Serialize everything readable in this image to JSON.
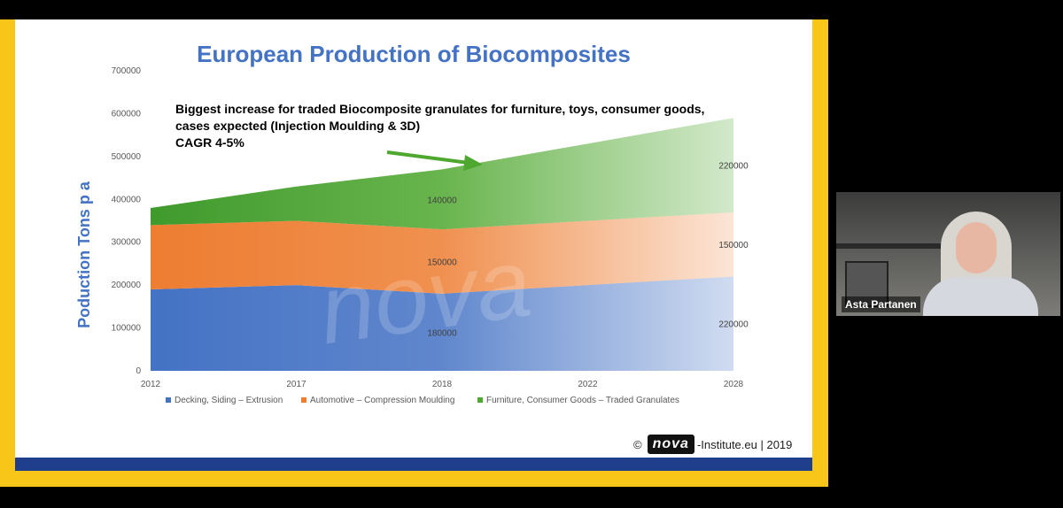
{
  "slide": {
    "title": "European Production of Biocomposites",
    "annotation": {
      "line1": "Biggest increase for traded Biocomposite granulates for furniture, toys, consumer goods, cases expected (Injection Moulding & 3D)",
      "line2": "CAGR 4-5%"
    },
    "copyright": {
      "symbol": "©",
      "logo_text": "nova",
      "suffix": "-Institute.eu | 2019"
    },
    "watermark": "nova"
  },
  "chart_data": {
    "type": "area",
    "stacked": true,
    "ylabel": "Poduction Tons p a",
    "ylim": [
      0,
      700000
    ],
    "yticks": [
      "0",
      "100000",
      "200000",
      "300000",
      "400000",
      "500000",
      "600000",
      "700000"
    ],
    "categories": [
      "2012",
      "2017",
      "2018",
      "2022",
      "2028"
    ],
    "series": [
      {
        "name": "Decking, Siding – Extrusion",
        "color": "#4472c4",
        "values": [
          190000,
          200000,
          180000,
          200000,
          220000
        ]
      },
      {
        "name": "Automotive – Compression Moulding",
        "color": "#ed7d31",
        "values": [
          150000,
          150000,
          150000,
          150000,
          150000
        ]
      },
      {
        "name": "Furniture, Consumer Goods – Traded Granulates",
        "color": "#4ea72e",
        "values": [
          40000,
          80000,
          140000,
          180000,
          220000
        ]
      }
    ],
    "data_labels": [
      {
        "series": 0,
        "category": "2018",
        "text": "180000"
      },
      {
        "series": 1,
        "category": "2018",
        "text": "150000"
      },
      {
        "series": 2,
        "category": "2018",
        "text": "140000"
      },
      {
        "series": 0,
        "category": "2028",
        "text": "220000"
      },
      {
        "series": 1,
        "category": "2028",
        "text": "150000"
      },
      {
        "series": 2,
        "category": "2028",
        "text": "220000"
      }
    ],
    "legend_position": "bottom",
    "grid": false
  },
  "video": {
    "participant_name": "Asta Partanen"
  }
}
